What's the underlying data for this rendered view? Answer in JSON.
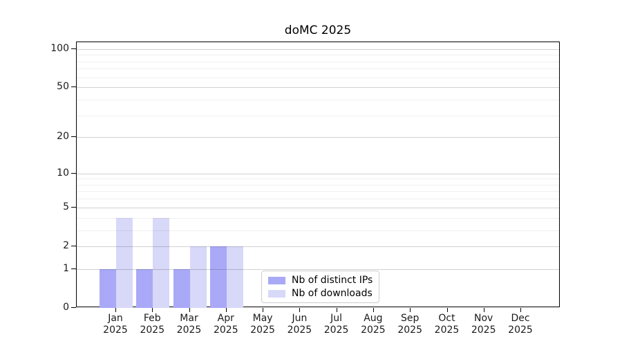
{
  "chart_data": {
    "type": "bar",
    "title": "doMC 2025",
    "year": "2025",
    "categories": [
      "Jan",
      "Feb",
      "Mar",
      "Apr",
      "May",
      "Jun",
      "Jul",
      "Aug",
      "Sep",
      "Oct",
      "Nov",
      "Dec"
    ],
    "series": [
      {
        "name": "Nb of distinct IPs",
        "color": "#a9a9f7",
        "values": [
          1,
          1,
          1,
          2,
          0,
          0,
          0,
          0,
          0,
          0,
          0,
          0
        ]
      },
      {
        "name": "Nb of downloads",
        "color": "#d8d8f8",
        "values": [
          4,
          4,
          2,
          2,
          0,
          0,
          0,
          0,
          0,
          0,
          0,
          0
        ]
      }
    ],
    "y_axis": {
      "scale": "log10(1+v)",
      "ticks": [
        0,
        1,
        2,
        5,
        10,
        20,
        50,
        100
      ],
      "minor_gridlines": [
        3,
        4,
        6,
        7,
        8,
        9,
        30,
        40,
        60,
        70,
        80,
        90
      ],
      "max": 113
    },
    "x_axis": {
      "label_line2_is_year": true
    },
    "legend_position": "bottom-center",
    "grid": true,
    "background": "#ffffff"
  }
}
